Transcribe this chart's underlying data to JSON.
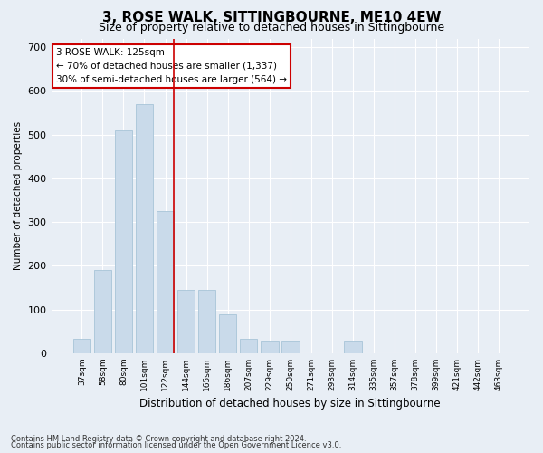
{
  "title": "3, ROSE WALK, SITTINGBOURNE, ME10 4EW",
  "subtitle": "Size of property relative to detached houses in Sittingbourne",
  "xlabel": "Distribution of detached houses by size in Sittingbourne",
  "ylabel": "Number of detached properties",
  "footer1": "Contains HM Land Registry data © Crown copyright and database right 2024.",
  "footer2": "Contains public sector information licensed under the Open Government Licence v3.0.",
  "categories": [
    "37sqm",
    "58sqm",
    "80sqm",
    "101sqm",
    "122sqm",
    "144sqm",
    "165sqm",
    "186sqm",
    "207sqm",
    "229sqm",
    "250sqm",
    "271sqm",
    "293sqm",
    "314sqm",
    "335sqm",
    "357sqm",
    "378sqm",
    "399sqm",
    "421sqm",
    "442sqm",
    "463sqm"
  ],
  "values": [
    33,
    190,
    510,
    570,
    325,
    145,
    145,
    90,
    33,
    28,
    28,
    0,
    0,
    28,
    0,
    0,
    0,
    0,
    0,
    0,
    0
  ],
  "bar_color": "#c9daea",
  "bar_edge_color": "#a8c4d8",
  "vline_x_index": 4,
  "vline_color": "#cc0000",
  "annotation_text": "3 ROSE WALK: 125sqm\n← 70% of detached houses are smaller (1,337)\n30% of semi-detached houses are larger (564) →",
  "annotation_box_color": "#ffffff",
  "annotation_box_edge": "#cc0000",
  "ylim": [
    0,
    720
  ],
  "yticks": [
    0,
    100,
    200,
    300,
    400,
    500,
    600,
    700
  ],
  "bg_color": "#e8eef5",
  "plot_bg_color": "#e8eef5",
  "title_fontsize": 11,
  "subtitle_fontsize": 9,
  "grid_color": "#ffffff"
}
